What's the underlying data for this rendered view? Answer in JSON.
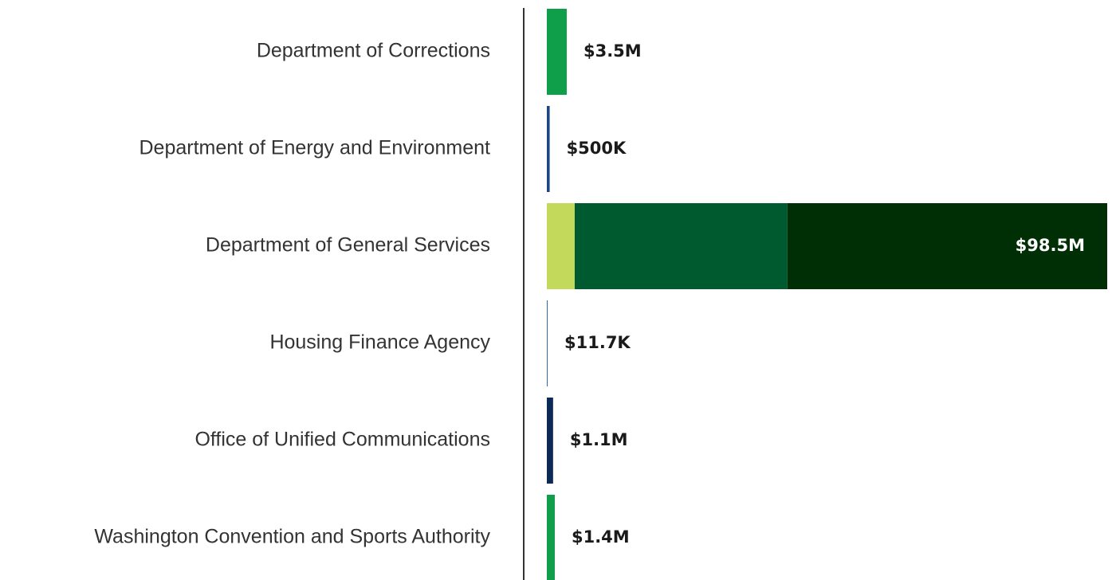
{
  "chart_data": {
    "type": "bar",
    "orientation": "horizontal",
    "stacked": true,
    "xlim": [
      0,
      98500000
    ],
    "rows": [
      {
        "label": "Department of Corrections",
        "segments": [
          {
            "value": 3500000,
            "color": "#0f9f4a"
          }
        ],
        "value_label": "$3.5M"
      },
      {
        "label": "Department of Energy and Environment",
        "segments": [
          {
            "value": 500000,
            "color": "#1c4585"
          }
        ],
        "value_label": "$500K"
      },
      {
        "label": "Department of General Services",
        "segments": [
          {
            "value": 4900000,
            "color": "#c3d95c"
          },
          {
            "value": 37400000,
            "color": "#005a30"
          },
          {
            "value": 56200000,
            "color": "#002f06"
          }
        ],
        "total": 98500000,
        "value_label": "$98.5M"
      },
      {
        "label": "Housing Finance Agency",
        "segments": [
          {
            "value": 11700,
            "color": "#2b6cb0"
          }
        ],
        "value_label": "$11.7K"
      },
      {
        "label": "Office of Unified Communications",
        "segments": [
          {
            "value": 1100000,
            "color": "#0b2a55"
          }
        ],
        "value_label": "$1.1M"
      },
      {
        "label": "Washington Convention and Sports Authority",
        "segments": [
          {
            "value": 1400000,
            "color": "#0f9f4a"
          }
        ],
        "value_label": "$1.4M"
      }
    ]
  }
}
